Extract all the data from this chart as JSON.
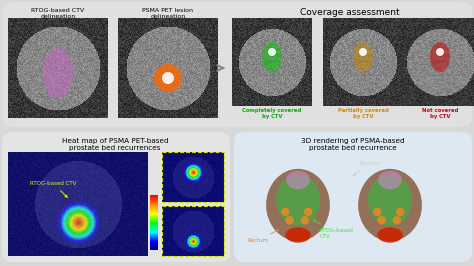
{
  "bg_color": "#d8d8d8",
  "top_panel_bg": "#e8e8e8",
  "bottom_left_bg": "#e8e8e8",
  "bottom_right_bg": "#dde8f0",
  "title_top": "Coverage assessment",
  "label1": "RTOG-based CTV\ndelineation",
  "label2": "PSMA PET lesion\ndelineation",
  "label_completely": "Completely covered\nby CTV",
  "label_partially": "Partially covered\nby CTV",
  "label_not_covered": "Not covered\nby CTV",
  "color_completely": "#00aa00",
  "color_partially": "#cc8800",
  "color_not_covered": "#cc0000",
  "bottom_left_title": "Heat map of PSMA PET-based\nprostate bed recurrences",
  "bottom_right_title": "3D rendering of PSMA-based\nprostate bed recurrence",
  "label_rtog_ctv": "RTOG-based CTV",
  "label_bladder": "Bladder",
  "label_rectum": "Rectum",
  "label_rtog_ctv2": "RTOG-based\nCTV",
  "ct_gray1": "#555555",
  "ct_gray2": "#444444",
  "pet_hot": "#ff4400",
  "heatmap_blue": "#0000ff",
  "heatmap_cyan": "#00ffff",
  "heatmap_yellow": "#ffff00",
  "heatmap_red": "#ff0000",
  "skin_color": "#8B6347",
  "green_3d": "#44aa44",
  "orange_3d": "#ee8822",
  "red_3d": "#cc2200",
  "purple_3d": "#cc88cc",
  "arrow_color": "#888888",
  "figsize": [
    4.74,
    2.66
  ],
  "dpi": 100
}
